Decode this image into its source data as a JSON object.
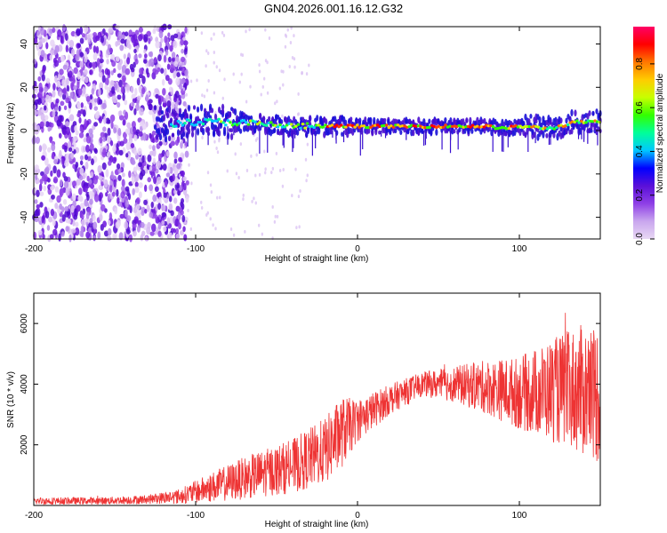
{
  "title": "GN04.2026.001.16.12.G32",
  "chart_data": [
    {
      "type": "heatmap",
      "xlabel": "Height of straight line (km)",
      "ylabel": "Frequency (Hz)",
      "xlim": [
        -200,
        150
      ],
      "ylim": [
        -50,
        48
      ],
      "x_ticks": [
        "-200",
        "-100",
        "0",
        "100"
      ],
      "y_ticks": [
        "-40",
        "-20",
        "0",
        "20",
        "40"
      ],
      "colorbar": {
        "label": "Normalized spectral amplitude",
        "ticks": [
          "0.0",
          "0.2",
          "0.4",
          "0.6",
          "0.8"
        ],
        "range": [
          0,
          0.97
        ],
        "colors": [
          "#e8d8f4",
          "#c9a6ee",
          "#8e3fe6",
          "#5a10d8",
          "#0000ff",
          "#00c8ff",
          "#00ff99",
          "#33ff00",
          "#c8ff00",
          "#ffcc00",
          "#ff7700",
          "#ff0000",
          "#ff0066"
        ]
      },
      "ridge": [
        {
          "x": -120,
          "f": 3
        },
        {
          "x": -100,
          "f": 4
        },
        {
          "x": -80,
          "f": 4
        },
        {
          "x": -60,
          "f": 3
        },
        {
          "x": -40,
          "f": 2
        },
        {
          "x": -20,
          "f": 2
        },
        {
          "x": 0,
          "f": 2
        },
        {
          "x": 20,
          "f": 2
        },
        {
          "x": 40,
          "f": 2
        },
        {
          "x": 60,
          "f": 2
        },
        {
          "x": 80,
          "f": 2
        },
        {
          "x": 90,
          "f": 1
        },
        {
          "x": 100,
          "f": 2
        },
        {
          "x": 120,
          "f": 1
        },
        {
          "x": 135,
          "f": 4
        },
        {
          "x": 150,
          "f": 4
        }
      ]
    },
    {
      "type": "line",
      "xlabel": "Height of straight line (km)",
      "ylabel": "SNR (10 * v/v)",
      "xlim": [
        -200,
        150
      ],
      "ylim": [
        0,
        7000
      ],
      "x_ticks": [
        "-200",
        "-100",
        "0",
        "100"
      ],
      "y_ticks": [
        "2000",
        "4000",
        "6000"
      ],
      "color": "#ee3333",
      "envelope": [
        {
          "x": -200,
          "mean": 150,
          "spread": 120
        },
        {
          "x": -160,
          "mean": 150,
          "spread": 120
        },
        {
          "x": -130,
          "mean": 200,
          "spread": 150
        },
        {
          "x": -110,
          "mean": 300,
          "spread": 250
        },
        {
          "x": -90,
          "mean": 600,
          "spread": 500
        },
        {
          "x": -70,
          "mean": 900,
          "spread": 700
        },
        {
          "x": -40,
          "mean": 1300,
          "spread": 900
        },
        {
          "x": -20,
          "mean": 1800,
          "spread": 1100
        },
        {
          "x": -10,
          "mean": 2400,
          "spread": 1200
        },
        {
          "x": 0,
          "mean": 2800,
          "spread": 700
        },
        {
          "x": 20,
          "mean": 3500,
          "spread": 500
        },
        {
          "x": 40,
          "mean": 4000,
          "spread": 400
        },
        {
          "x": 60,
          "mean": 4000,
          "spread": 600
        },
        {
          "x": 80,
          "mean": 3900,
          "spread": 900
        },
        {
          "x": 100,
          "mean": 3700,
          "spread": 1200
        },
        {
          "x": 120,
          "mean": 3800,
          "spread": 1700
        },
        {
          "x": 140,
          "mean": 3800,
          "spread": 2200
        },
        {
          "x": 150,
          "mean": 3700,
          "spread": 2400
        }
      ]
    }
  ]
}
